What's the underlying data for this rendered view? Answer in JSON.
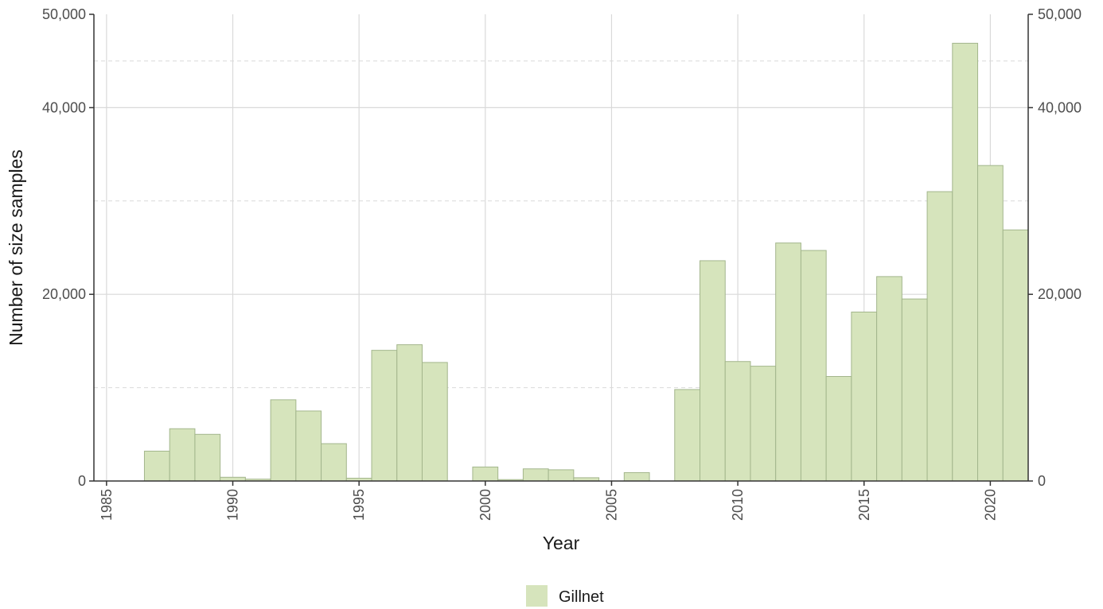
{
  "chart_data": {
    "type": "bar",
    "xlabel": "Year",
    "ylabel": "Number of size samples",
    "xlim": [
      1984.5,
      2021.5
    ],
    "ylim": [
      0,
      50000
    ],
    "x_ticks": [
      "1985",
      "1990",
      "1995",
      "2000",
      "2005",
      "2010",
      "2015",
      "2020"
    ],
    "y_ticks": [
      "0",
      "20,000",
      "40,000",
      "50,000"
    ],
    "y_tick_values": [
      0,
      20000,
      40000,
      50000
    ],
    "grid": true,
    "secondary_y_axis": true,
    "legend_position": "bottom",
    "bar_color": "#d6e4bc",
    "bar_outline_color": "#a3b68c",
    "series": [
      {
        "name": "Gillnet",
        "x": [
          1985,
          1986,
          1987,
          1988,
          1989,
          1990,
          1991,
          1992,
          1993,
          1994,
          1995,
          1996,
          1997,
          1998,
          1999,
          2000,
          2001,
          2002,
          2003,
          2004,
          2005,
          2006,
          2007,
          2008,
          2009,
          2010,
          2011,
          2012,
          2013,
          2014,
          2015,
          2016,
          2017,
          2018,
          2019,
          2020,
          2021
        ],
        "values": [
          0,
          0,
          3200,
          5600,
          5000,
          400,
          200,
          8700,
          7500,
          4000,
          300,
          14000,
          14600,
          12700,
          0,
          1500,
          150,
          1300,
          1200,
          350,
          0,
          900,
          0,
          9800,
          23600,
          12800,
          12300,
          25500,
          24700,
          11200,
          18100,
          21900,
          19500,
          31000,
          46900,
          33800,
          26900
        ]
      }
    ]
  }
}
